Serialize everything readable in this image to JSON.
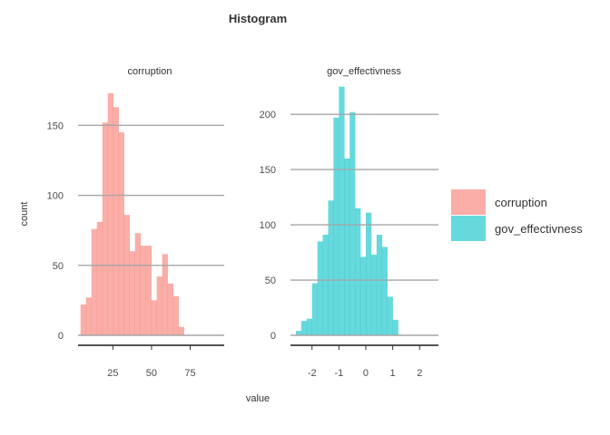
{
  "chart_data": {
    "type": "bar",
    "title": "Histogram",
    "xlabel": "value",
    "ylabel": "count",
    "legend_position": "right",
    "grid": "major y gridlines",
    "panels": [
      {
        "name": "corruption",
        "color": "#F8766D",
        "xlim": [
          2.5,
          97
        ],
        "ylim": [
          0,
          180
        ],
        "x_ticks": [
          25,
          50,
          75
        ],
        "x_tick_labels": [
          "25",
          "50",
          "75"
        ],
        "y_ticks": [
          0,
          50,
          100,
          150
        ],
        "y_tick_labels": [
          "0",
          "50",
          "100",
          "150"
        ],
        "bin_width": 3.52,
        "bin_start": 4.1,
        "values": [
          22,
          27,
          76,
          81,
          152,
          173,
          163,
          145,
          86,
          60,
          73,
          64,
          64,
          25,
          42,
          58,
          37,
          28,
          6
        ]
      },
      {
        "name": "gov_effectivness",
        "color": "#00BFC4",
        "xlim": [
          -2.8,
          2.7
        ],
        "ylim": [
          0,
          228
        ],
        "x_ticks": [
          -2,
          -1,
          0,
          1,
          2
        ],
        "x_tick_labels": [
          "-2",
          "-1",
          "0",
          "1",
          "2"
        ],
        "y_ticks": [
          0,
          50,
          100,
          150,
          200
        ],
        "y_tick_labels": [
          "0",
          "50",
          "100",
          "150",
          "200"
        ],
        "bin_width": 0.2,
        "bin_start": -2.6,
        "values": [
          4,
          13,
          15,
          47,
          85,
          91,
          122,
          197,
          225,
          160,
          202,
          115,
          71,
          111,
          73,
          91,
          80,
          35,
          14
        ]
      }
    ],
    "legend": [
      {
        "label": "corruption",
        "color": "#F8766D"
      },
      {
        "label": "gov_effectivness",
        "color": "#00BFC4"
      }
    ]
  }
}
